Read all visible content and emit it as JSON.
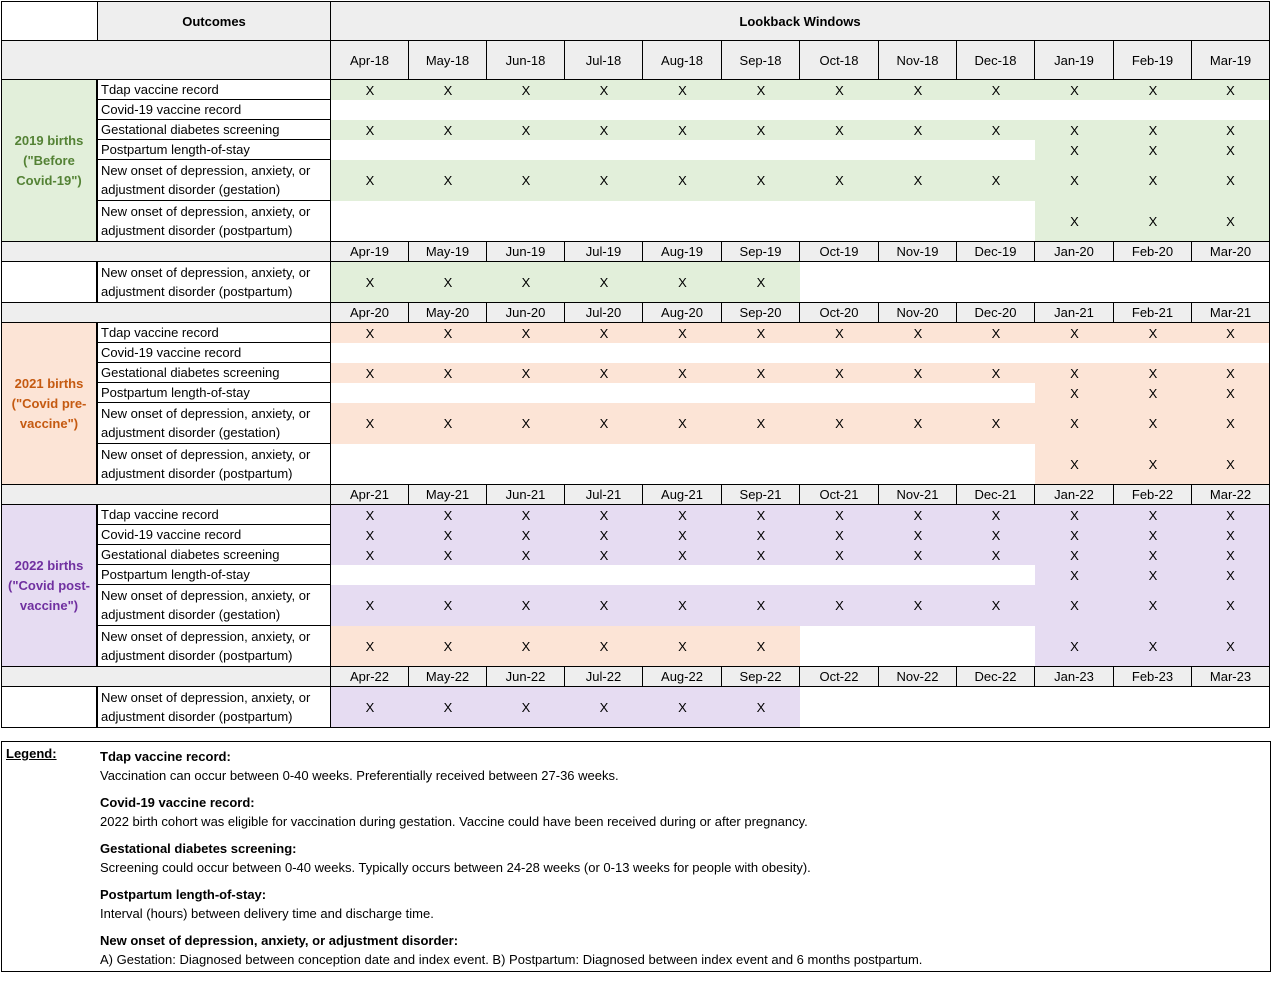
{
  "header": {
    "outcomes_title": "Outcomes",
    "windows_title": "Lookback Windows"
  },
  "colors": {
    "grid_line": "#000000",
    "header_fill": "#eeeeee",
    "green_fill": "#e2efda",
    "green_text": "#548235",
    "orange_fill": "#fce4d6",
    "orange_text": "#c55a11",
    "purple_fill": "#e6dcf2",
    "purple_text": "#7030a0"
  },
  "month_rows": [
    [
      "Apr-18",
      "May-18",
      "Jun-18",
      "Jul-18",
      "Aug-18",
      "Sep-18",
      "Oct-18",
      "Nov-18",
      "Dec-18",
      "Jan-19",
      "Feb-19",
      "Mar-19"
    ],
    [
      "Apr-19",
      "May-19",
      "Jun-19",
      "Jul-19",
      "Aug-19",
      "Sep-19",
      "Oct-19",
      "Nov-19",
      "Dec-19",
      "Jan-20",
      "Feb-20",
      "Mar-20"
    ],
    [
      "Apr-20",
      "May-20",
      "Jun-20",
      "Jul-20",
      "Aug-20",
      "Sep-20",
      "Oct-20",
      "Nov-20",
      "Dec-20",
      "Jan-21",
      "Feb-21",
      "Mar-21"
    ],
    [
      "Apr-21",
      "May-21",
      "Jun-21",
      "Jul-21",
      "Aug-21",
      "Sep-21",
      "Oct-21",
      "Nov-21",
      "Dec-21",
      "Jan-22",
      "Feb-22",
      "Mar-22"
    ],
    [
      "Apr-22",
      "May-22",
      "Jun-22",
      "Jul-22",
      "Aug-22",
      "Sep-22",
      "Oct-22",
      "Nov-22",
      "Dec-22",
      "Jan-23",
      "Feb-23",
      "Mar-23"
    ]
  ],
  "sections": [
    {
      "type": "months",
      "month_row": 0,
      "tall": true
    },
    {
      "type": "cohort",
      "label": "2019 births (\"Before Covid-19\")",
      "color": "green",
      "rows": [
        {
          "outcome": "Tdap vaccine record",
          "cols": "all",
          "fill": "green"
        },
        {
          "outcome": "Covid-19 vaccine record",
          "cols": "none",
          "fill": "none"
        },
        {
          "outcome": "Gestational diabetes screening",
          "cols": "all",
          "fill": "green"
        },
        {
          "outcome": "Postpartum length-of-stay",
          "cols": "last3",
          "fill": "green"
        },
        {
          "outcome": "New onset of depression, anxiety, or adjustment disorder (gestation)",
          "cols": "all",
          "fill": "green",
          "tall": true
        },
        {
          "outcome": "New onset of depression, anxiety, or adjustment disorder (postpartum)",
          "cols": "last3",
          "fill": "green",
          "tall": true
        }
      ]
    },
    {
      "type": "months",
      "month_row": 1
    },
    {
      "type": "cohort",
      "label": "",
      "color": "none",
      "rows": [
        {
          "outcome": "New onset of depression, anxiety, or adjustment disorder (postpartum)",
          "cols": "first6",
          "fill": "green",
          "tall": true
        }
      ]
    },
    {
      "type": "months",
      "month_row": 2
    },
    {
      "type": "cohort",
      "label": "2021 births (\"Covid pre-vaccine\")",
      "color": "orange",
      "rows": [
        {
          "outcome": "Tdap vaccine record",
          "cols": "all",
          "fill": "orange"
        },
        {
          "outcome": "Covid-19 vaccine record",
          "cols": "none",
          "fill": "none"
        },
        {
          "outcome": "Gestational diabetes screening",
          "cols": "all",
          "fill": "orange"
        },
        {
          "outcome": "Postpartum length-of-stay",
          "cols": "last3",
          "fill": "orange"
        },
        {
          "outcome": "New onset of depression, anxiety, or adjustment disorder (gestation)",
          "cols": "all",
          "fill": "orange",
          "tall": true
        },
        {
          "outcome": "New onset of depression, anxiety, or adjustment disorder (postpartum)",
          "cols": "last3",
          "fill": "orange",
          "tall": true
        }
      ]
    },
    {
      "type": "months",
      "month_row": 3
    },
    {
      "type": "cohort",
      "label": "2022 births (\"Covid post-vaccine\")",
      "color": "purple",
      "rows": [
        {
          "outcome": "Tdap vaccine record",
          "cols": "all",
          "fill": "purple"
        },
        {
          "outcome": "Covid-19 vaccine record",
          "cols": "all",
          "fill": "purple"
        },
        {
          "outcome": "Gestational diabetes screening",
          "cols": "all",
          "fill": "purple"
        },
        {
          "outcome": "Postpartum length-of-stay",
          "cols": "last3",
          "fill": "purple"
        },
        {
          "outcome": "New onset of depression, anxiety, or adjustment disorder (gestation)",
          "cols": "all",
          "fill": "purple",
          "tall": true
        },
        {
          "outcome": "New onset of depression, anxiety, or adjustment disorder (postpartum)",
          "cols": "first6_last3",
          "fill": "orange",
          "fill2": "purple",
          "tall": true
        }
      ]
    },
    {
      "type": "months",
      "month_row": 4
    },
    {
      "type": "cohort",
      "label": "",
      "color": "none",
      "rows": [
        {
          "outcome": "New onset of depression, anxiety, or adjustment disorder (postpartum)",
          "cols": "first6",
          "fill": "purple",
          "tall": true
        }
      ]
    }
  ],
  "mark": "X",
  "legend": {
    "title": "Legend:",
    "entries": [
      {
        "term": "Tdap vaccine record:",
        "definition": "Vaccination can occur between 0-40 weeks. Preferentially received between 27-36 weeks."
      },
      {
        "term": "Covid-19 vaccine record:",
        "definition": "2022 birth cohort was eligible for vaccination during gestation. Vaccine could have been received during or after pregnancy."
      },
      {
        "term": "Gestational diabetes screening:",
        "definition": "Screening could occur between 0-40 weeks. Typically occurs between 24-28 weeks (or 0-13 weeks for people with obesity)."
      },
      {
        "term": "Postpartum length-of-stay:",
        "definition": "Interval (hours) between delivery time and discharge time."
      },
      {
        "term": "New onset of depression, anxiety, or adjustment disorder:",
        "definition": "A) Gestation: Diagnosed between conception date and index event. B) Postpartum: Diagnosed between index event and 6 months postpartum."
      }
    ]
  }
}
